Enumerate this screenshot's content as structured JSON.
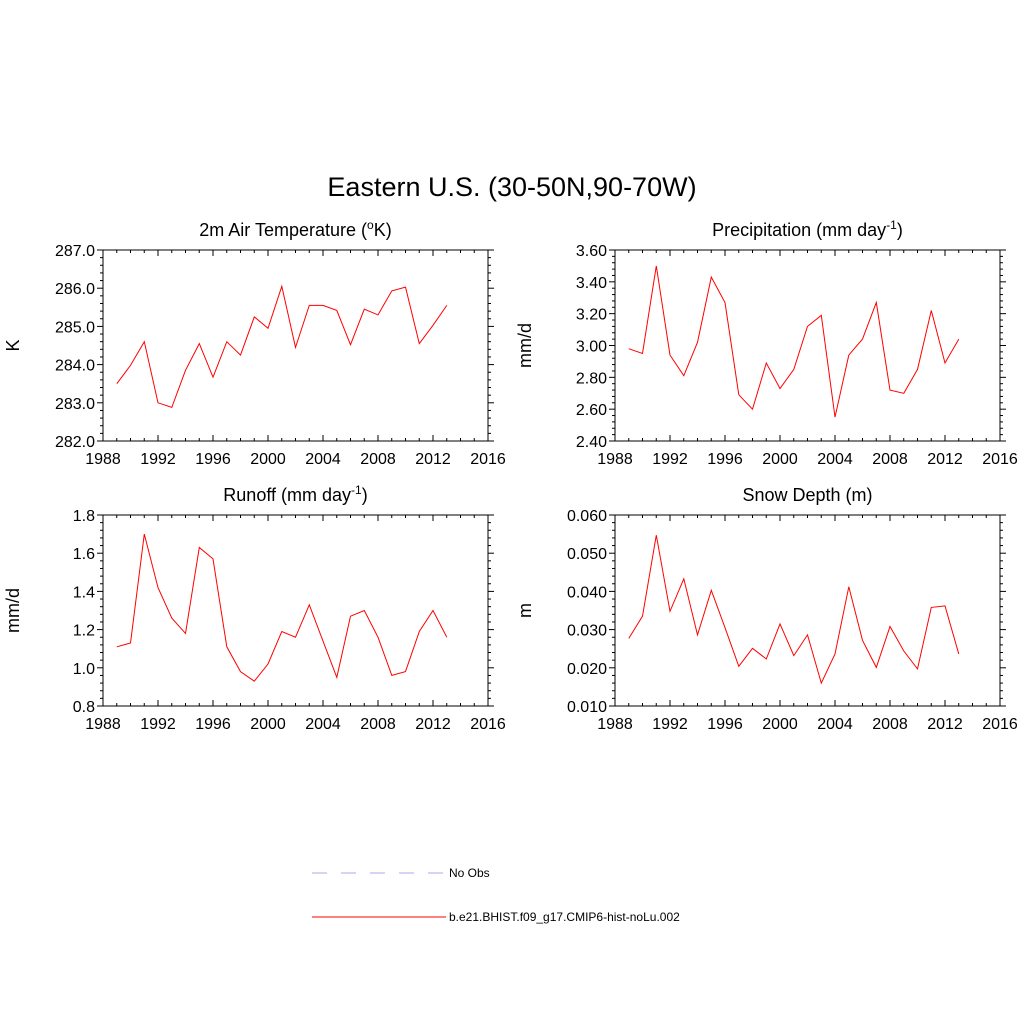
{
  "title": "Eastern U.S. (30-50N,90-70W)",
  "legend": {
    "entries": [
      {
        "label": "No Obs",
        "color": "#aaaaee",
        "style": "dashed"
      },
      {
        "label": "b.e21.BHIST.f09_g17.CMIP6-hist-noLu.002",
        "color": "#ff0000",
        "style": "solid"
      }
    ]
  },
  "chart_data": [
    {
      "type": "line",
      "title": "2m Air Temperature (",
      "title_sup": "o",
      "title_after": "K)",
      "ylabel": "K",
      "xlim": [
        1988,
        2016
      ],
      "ylim": [
        282.0,
        287.0
      ],
      "xticks": [
        "1988",
        "1992",
        "1996",
        "2000",
        "2004",
        "2008",
        "2012",
        "2016"
      ],
      "yticks": [
        "282.0",
        "283.0",
        "284.0",
        "285.0",
        "286.0",
        "287.0"
      ],
      "x": [
        1989,
        1990,
        1991,
        1992,
        1993,
        1994,
        1995,
        1996,
        1997,
        1998,
        1999,
        2000,
        2001,
        2002,
        2003,
        2004,
        2005,
        2006,
        2007,
        2008,
        2009,
        2010,
        2011,
        2012,
        2013
      ],
      "series": [
        {
          "color": "#ff0000",
          "values": [
            283.5,
            283.98,
            284.6,
            283.0,
            282.88,
            283.85,
            284.55,
            283.67,
            284.6,
            284.25,
            285.25,
            284.95,
            286.05,
            284.45,
            285.55,
            285.55,
            285.42,
            284.52,
            285.45,
            285.3,
            285.93,
            286.03,
            284.55,
            285.03,
            285.55
          ]
        }
      ]
    },
    {
      "type": "line",
      "title": "Precipitation (mm day",
      "title_sup": "-1",
      "title_after": ")",
      "ylabel": "mm/d",
      "xlim": [
        1988,
        2016
      ],
      "ylim": [
        2.4,
        3.6
      ],
      "xticks": [
        "1988",
        "1992",
        "1996",
        "2000",
        "2004",
        "2008",
        "2012",
        "2016"
      ],
      "yticks": [
        "2.40",
        "2.60",
        "2.80",
        "3.00",
        "3.20",
        "3.40",
        "3.60"
      ],
      "x": [
        1989,
        1990,
        1991,
        1992,
        1993,
        1994,
        1995,
        1996,
        1997,
        1998,
        1999,
        2000,
        2001,
        2002,
        2003,
        2004,
        2005,
        2006,
        2007,
        2008,
        2009,
        2010,
        2011,
        2012,
        2013
      ],
      "series": [
        {
          "color": "#ff0000",
          "values": [
            2.98,
            2.95,
            3.5,
            2.94,
            2.81,
            3.02,
            3.43,
            3.27,
            2.69,
            2.6,
            2.89,
            2.73,
            2.85,
            3.12,
            3.19,
            2.55,
            2.94,
            3.04,
            3.27,
            2.72,
            2.7,
            2.85,
            3.22,
            2.89,
            3.04
          ]
        }
      ]
    },
    {
      "type": "line",
      "title": "Runoff (mm day",
      "title_sup": "-1",
      "title_after": ")",
      "ylabel": "mm/d",
      "xlim": [
        1988,
        2016
      ],
      "ylim": [
        0.8,
        1.8
      ],
      "xticks": [
        "1988",
        "1992",
        "1996",
        "2000",
        "2004",
        "2008",
        "2012",
        "2016"
      ],
      "yticks": [
        "0.8",
        "1.0",
        "1.2",
        "1.4",
        "1.6",
        "1.8"
      ],
      "x": [
        1989,
        1990,
        1991,
        1992,
        1993,
        1994,
        1995,
        1996,
        1997,
        1998,
        1999,
        2000,
        2001,
        2002,
        2003,
        2004,
        2005,
        2006,
        2007,
        2008,
        2009,
        2010,
        2011,
        2012,
        2013
      ],
      "series": [
        {
          "color": "#ff0000",
          "values": [
            1.11,
            1.13,
            1.7,
            1.42,
            1.26,
            1.18,
            1.63,
            1.57,
            1.11,
            0.98,
            0.93,
            1.02,
            1.19,
            1.16,
            1.33,
            1.14,
            0.95,
            1.27,
            1.3,
            1.16,
            0.96,
            0.98,
            1.19,
            1.3,
            1.16
          ]
        }
      ]
    },
    {
      "type": "line",
      "title": "Snow Depth (m)",
      "title_sup": "",
      "title_after": "",
      "ylabel": "m",
      "xlim": [
        1988,
        2016
      ],
      "ylim": [
        0.01,
        0.06
      ],
      "xticks": [
        "1988",
        "1992",
        "1996",
        "2000",
        "2004",
        "2008",
        "2012",
        "2016"
      ],
      "yticks": [
        "0.010",
        "0.020",
        "0.030",
        "0.040",
        "0.050",
        "0.060"
      ],
      "x": [
        1989,
        1990,
        1991,
        1992,
        1993,
        1994,
        1995,
        1996,
        1997,
        1998,
        1999,
        2000,
        2001,
        2002,
        2003,
        2004,
        2005,
        2006,
        2007,
        2008,
        2009,
        2010,
        2011,
        2012,
        2013
      ],
      "series": [
        {
          "color": "#ff0000",
          "values": [
            0.0277,
            0.0335,
            0.0547,
            0.0348,
            0.0433,
            0.0286,
            0.0403,
            0.0305,
            0.0204,
            0.0251,
            0.0223,
            0.0315,
            0.0232,
            0.0286,
            0.016,
            0.0236,
            0.0412,
            0.0272,
            0.0201,
            0.0308,
            0.0244,
            0.0197,
            0.0358,
            0.0362,
            0.0236
          ]
        }
      ]
    }
  ]
}
